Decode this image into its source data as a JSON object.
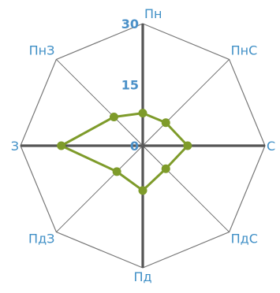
{
  "chart_data": {
    "type": "radar",
    "categories": [
      "Пн",
      "ПнС",
      "С",
      "ПдС",
      "Пд",
      "ПдЗ",
      "З",
      "ПнЗ"
    ],
    "series": [
      {
        "values": [
          8,
          8,
          11,
          8,
          11,
          9,
          20,
          10
        ]
      }
    ],
    "rlim": [
      0,
      30
    ],
    "tick_labels": [
      "0",
      "15",
      "30"
    ],
    "grid": true,
    "colors": {
      "series": "#7e9b2a",
      "label": "#3f8fc6",
      "tick": "#4a90c8",
      "grid_octagon": "#777777",
      "axis_diagonal": "#666666",
      "axis_main": "#555555"
    }
  }
}
